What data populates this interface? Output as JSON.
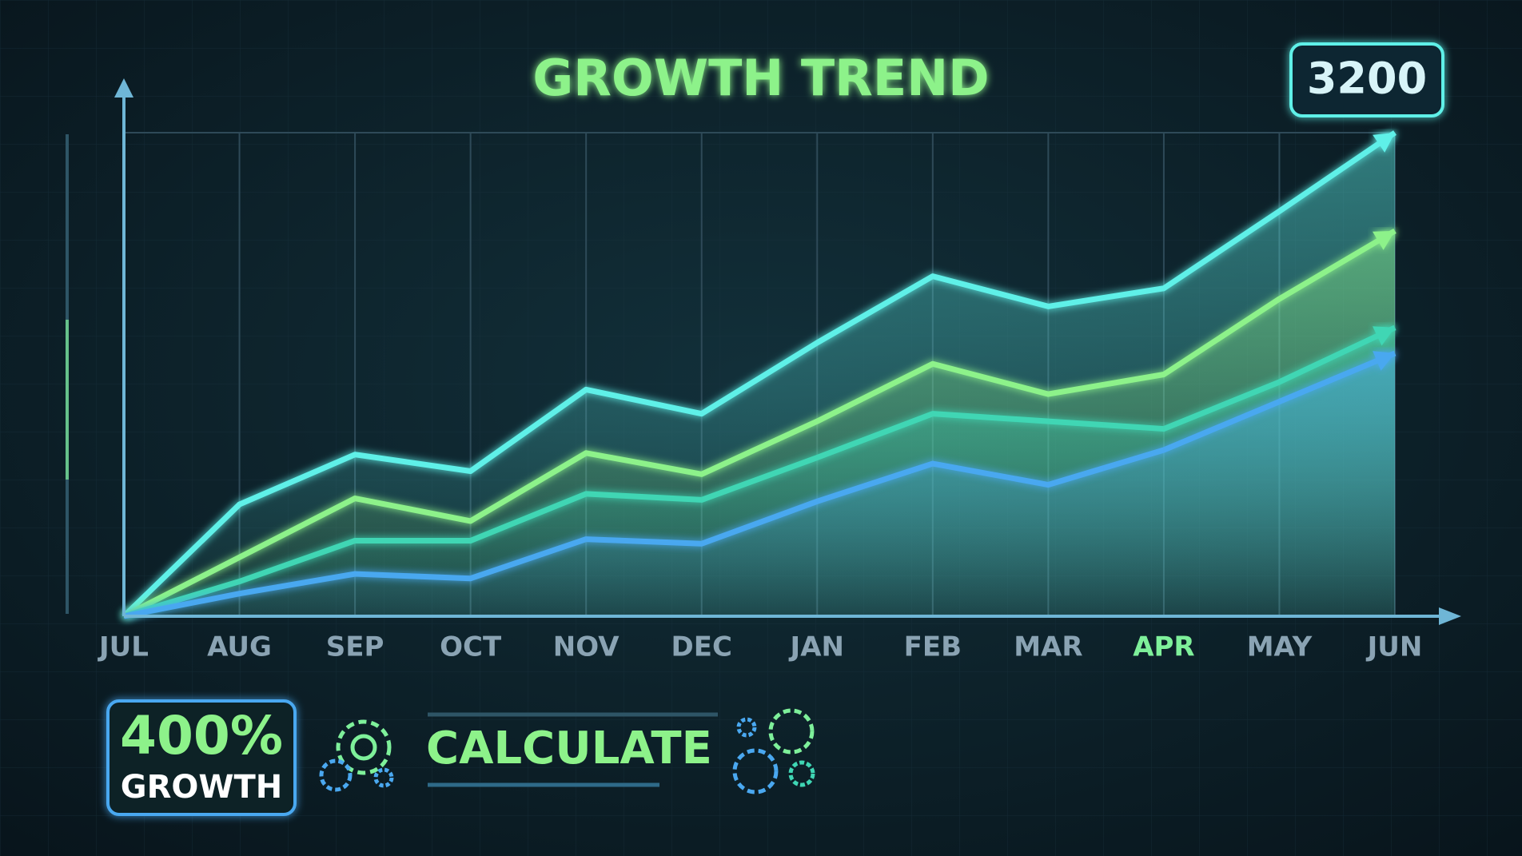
{
  "chart_data": {
    "type": "line",
    "title": "GROWTH TREND",
    "categories": [
      "JUL",
      "AUG",
      "SEP",
      "OCT",
      "NOV",
      "DEC",
      "JAN",
      "FEB",
      "MAR",
      "APR",
      "MAY",
      "JUN"
    ],
    "series": [
      {
        "color": "#5ff0e8",
        "values": [
          0,
          740,
          1070,
          960,
          1500,
          1340,
          1810,
          2250,
          2050,
          2170,
          2680,
          3200
        ]
      },
      {
        "color": "#8df28a",
        "values": [
          0,
          390,
          780,
          630,
          1080,
          940,
          1290,
          1670,
          1470,
          1600,
          2100,
          2550
        ]
      },
      {
        "color": "#3fd6b4",
        "values": [
          0,
          230,
          500,
          500,
          810,
          770,
          1050,
          1340,
          1290,
          1240,
          1550,
          1910
        ]
      },
      {
        "color": "#4aa8f0",
        "values": [
          0,
          150,
          280,
          250,
          510,
          480,
          760,
          1010,
          870,
          1100,
          1420,
          1740
        ]
      }
    ],
    "ylim": [
      0,
      3200
    ],
    "grid": true,
    "highlighted_category": 9,
    "highlight_color": "#7ef09a",
    "annotations": {
      "growth": "400%",
      "growth_label": "GROWTH",
      "button": "CALCULATE"
    }
  }
}
